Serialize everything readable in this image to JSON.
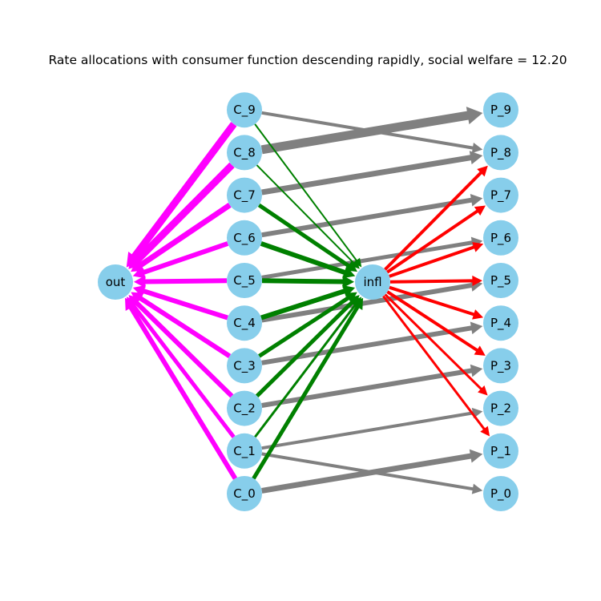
{
  "title": "Rate allocations with consumer function descending rapidly, social welfare = 12.20",
  "colors": {
    "node": "#87ceeb",
    "source_edge": "#ff00ff",
    "consumer_to_infl": "#008000",
    "infl_to_producer": "#ff0000",
    "consumer_to_producer": "#808080"
  },
  "nodes": {
    "source": "out",
    "hub": "infl",
    "consumers": [
      "C_0",
      "C_1",
      "C_2",
      "C_3",
      "C_4",
      "C_5",
      "C_6",
      "C_7",
      "C_8",
      "C_9"
    ],
    "producers": [
      "P_0",
      "P_1",
      "P_2",
      "P_3",
      "P_4",
      "P_5",
      "P_6",
      "P_7",
      "P_8",
      "P_9"
    ]
  },
  "edges": {
    "source_to_consumer_weights": [
      6,
      5,
      6,
      6,
      6,
      6,
      6,
      7,
      9,
      9
    ],
    "consumer_to_infl_weights": [
      5,
      3,
      5,
      5,
      6,
      6,
      6,
      5,
      2,
      2
    ],
    "infl_to_producer_weights": [
      0,
      3,
      3,
      4,
      4,
      4,
      4,
      4,
      4,
      0
    ],
    "consumer_to_producer": [
      {
        "from": "C_0",
        "to": "P_1",
        "weight": 7
      },
      {
        "from": "C_1",
        "to": "P_0",
        "weight": 4
      },
      {
        "from": "C_1",
        "to": "P_2",
        "weight": 4
      },
      {
        "from": "C_2",
        "to": "P_3",
        "weight": 6
      },
      {
        "from": "C_3",
        "to": "P_4",
        "weight": 6
      },
      {
        "from": "C_4",
        "to": "P_5",
        "weight": 6
      },
      {
        "from": "C_5",
        "to": "P_6",
        "weight": 5
      },
      {
        "from": "C_6",
        "to": "P_7",
        "weight": 6
      },
      {
        "from": "C_7",
        "to": "P_8",
        "weight": 7
      },
      {
        "from": "C_8",
        "to": "P_9",
        "weight": 11
      },
      {
        "from": "C_9",
        "to": "P_8",
        "weight": 4
      }
    ]
  }
}
